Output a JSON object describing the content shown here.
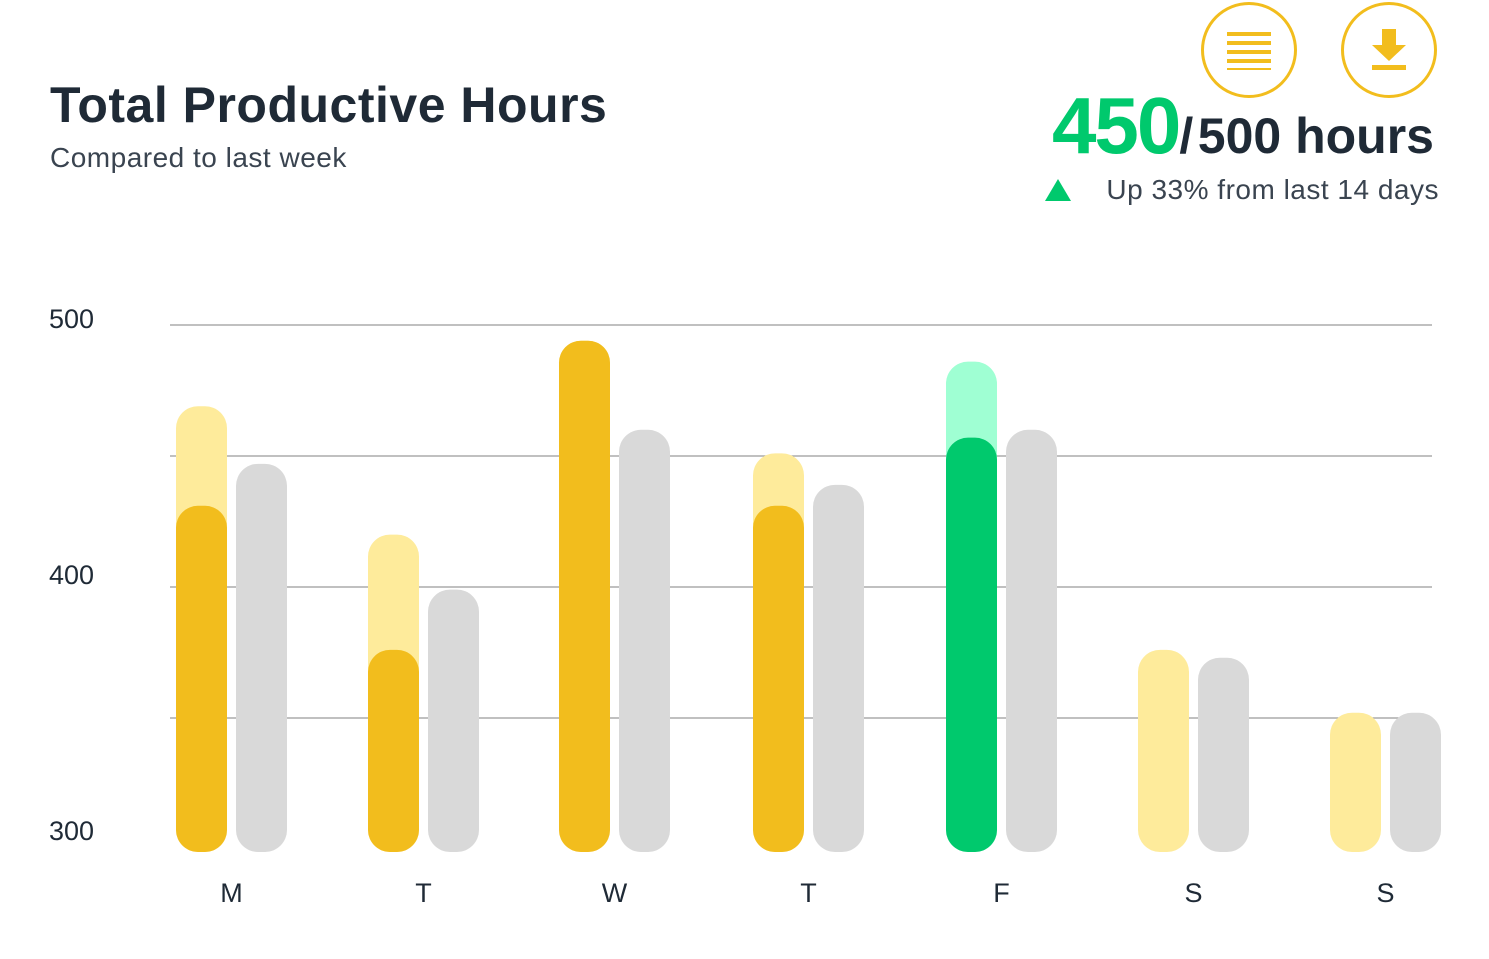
{
  "header": {
    "title": "Total Productive Hours",
    "subtitle": "Compared to last week"
  },
  "summary": {
    "value": "450",
    "separator": "/",
    "target": "500 hours",
    "trend_text": "Up 33% from last 14 days",
    "trend_icon": "triangle-up-icon"
  },
  "toolbar": {
    "menu_icon": "menu-lines-icon",
    "download_icon": "download-icon"
  },
  "colors": {
    "accent": "#f2bd1d",
    "accent_light": "#feeb9b",
    "highlight": "#00c96d",
    "highlight_light": "#9fffd3",
    "comparison": "#d9d9d9",
    "text": "#1f2a36"
  },
  "chart_data": {
    "type": "bar",
    "categories": [
      "M",
      "T",
      "W",
      "T",
      "F",
      "S",
      "S"
    ],
    "ylim": [
      300,
      500
    ],
    "yticks": [
      300,
      400,
      500
    ],
    "grid": true,
    "series": [
      {
        "values": [
          469,
          420,
          494,
          451,
          486,
          376,
          352
        ]
      },
      {
        "values": [
          431,
          376,
          494,
          431,
          457,
          null,
          null
        ]
      },
      {
        "values": [
          447,
          399,
          460,
          439,
          460,
          373,
          352
        ]
      }
    ],
    "highlight_index": 4
  }
}
